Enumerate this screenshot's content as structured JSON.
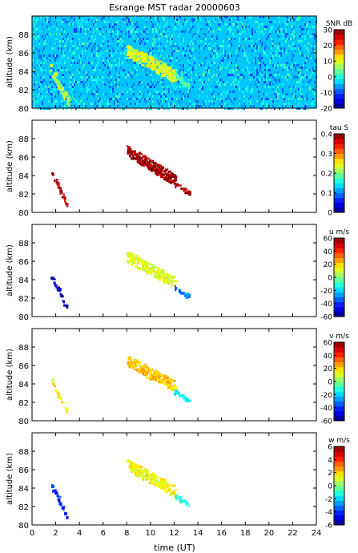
{
  "chart_data": {
    "title": "Esrange MST radar 20000603",
    "x_axis": {
      "label": "time (UT)",
      "range": [
        0,
        24
      ],
      "ticks": [
        0,
        2,
        4,
        6,
        8,
        10,
        12,
        14,
        16,
        18,
        20,
        22,
        24
      ],
      "tick_labels": [
        "0",
        "2",
        "4",
        "6",
        "8",
        "10",
        "12",
        "14",
        "16",
        "18",
        "20",
        "22",
        "24"
      ]
    },
    "panels": [
      {
        "type": "heatmap",
        "ylabel": "altitude (km)",
        "ylim": [
          80,
          90
        ],
        "yticks": [
          80,
          82,
          84,
          86,
          88
        ],
        "colorbar": {
          "label": "SNR dB",
          "range": [
            -20,
            30
          ],
          "ticks": [
            -20,
            -10,
            0,
            10,
            20,
            30
          ],
          "tick_labels": [
            "-20",
            "-10",
            "0",
            "10",
            "20",
            "30"
          ]
        },
        "background_value": -4,
        "echo_regions": [
          {
            "t_start": 1.5,
            "t_end": 3.0,
            "alt_start": 84.4,
            "alt_end": 80.8,
            "width_km": 1.0,
            "value": 8
          },
          {
            "t_start": 8.0,
            "t_end": 12.0,
            "alt_start": 86.4,
            "alt_end": 83.6,
            "width_km": 1.4,
            "value": 10
          },
          {
            "t_start": 12.0,
            "t_end": 13.2,
            "alt_start": 83.6,
            "alt_end": 82.5,
            "width_km": 0.6,
            "value": 4
          }
        ]
      },
      {
        "type": "heatmap",
        "ylabel": "altitude (km)",
        "ylim": [
          80,
          90
        ],
        "yticks": [
          80,
          82,
          84,
          86,
          88
        ],
        "colorbar": {
          "label": "tau S",
          "range": [
            0,
            0.4
          ],
          "ticks": [
            0,
            0.1,
            0.2,
            0.3,
            0.4
          ],
          "tick_labels": [
            "0",
            "0.1",
            "0.2",
            "0.3",
            "0.4"
          ]
        },
        "echo_regions": [
          {
            "t_start": 1.6,
            "t_end": 2.9,
            "alt_start": 84.4,
            "alt_end": 81.0,
            "width_km": 0.5,
            "value": 0.38
          },
          {
            "t_start": 8.0,
            "t_end": 12.0,
            "alt_start": 86.8,
            "alt_end": 83.6,
            "width_km": 1.2,
            "value": 0.39
          },
          {
            "t_start": 12.0,
            "t_end": 13.2,
            "alt_start": 83.2,
            "alt_end": 82.2,
            "width_km": 0.4,
            "value": 0.38
          }
        ]
      },
      {
        "type": "heatmap",
        "ylabel": "altitude (km)",
        "ylim": [
          80,
          90
        ],
        "yticks": [
          80,
          82,
          84,
          86,
          88
        ],
        "colorbar": {
          "label": "u m/s",
          "range": [
            -60,
            60
          ],
          "ticks": [
            -60,
            -40,
            -20,
            0,
            20,
            40,
            60
          ],
          "tick_labels": [
            "-60",
            "-40",
            "-20",
            "0",
            "20",
            "40",
            "60"
          ]
        },
        "echo_regions": [
          {
            "t_start": 1.6,
            "t_end": 2.9,
            "alt_start": 84.4,
            "alt_end": 81.0,
            "width_km": 0.5,
            "value": -55
          },
          {
            "t_start": 8.0,
            "t_end": 12.0,
            "alt_start": 86.6,
            "alt_end": 83.8,
            "width_km": 1.2,
            "value": 12
          },
          {
            "t_start": 12.0,
            "t_end": 13.2,
            "alt_start": 83.2,
            "alt_end": 82.3,
            "width_km": 0.4,
            "value": -30
          }
        ]
      },
      {
        "type": "heatmap",
        "ylabel": "altitude (km)",
        "ylim": [
          80,
          90
        ],
        "yticks": [
          80,
          82,
          84,
          86,
          88
        ],
        "colorbar": {
          "label": "v m/s",
          "range": [
            -60,
            60
          ],
          "ticks": [
            -60,
            -40,
            -20,
            0,
            20,
            40,
            60
          ],
          "tick_labels": [
            "-60",
            "-40",
            "-20",
            "0",
            "20",
            "40",
            "60"
          ]
        },
        "echo_regions": [
          {
            "t_start": 1.6,
            "t_end": 2.9,
            "alt_start": 84.4,
            "alt_end": 81.0,
            "width_km": 0.5,
            "value": 15
          },
          {
            "t_start": 8.0,
            "t_end": 12.0,
            "alt_start": 86.6,
            "alt_end": 83.8,
            "width_km": 1.2,
            "value": 22
          },
          {
            "t_start": 12.0,
            "t_end": 13.2,
            "alt_start": 83.2,
            "alt_end": 82.3,
            "width_km": 0.4,
            "value": -15
          }
        ]
      },
      {
        "type": "heatmap",
        "ylabel": "altitude (km)",
        "ylim": [
          80,
          90
        ],
        "yticks": [
          80,
          82,
          84,
          86,
          88
        ],
        "colorbar": {
          "label": "w m/s",
          "range": [
            -6,
            6
          ],
          "ticks": [
            -6,
            -4,
            -2,
            0,
            2,
            4,
            6
          ],
          "tick_labels": [
            "-6",
            "-4",
            "-2",
            "0",
            "2",
            "4",
            "6"
          ]
        },
        "echo_regions": [
          {
            "t_start": 1.6,
            "t_end": 2.9,
            "alt_start": 84.4,
            "alt_end": 81.0,
            "width_km": 0.5,
            "value": -4
          },
          {
            "t_start": 8.0,
            "t_end": 12.0,
            "alt_start": 86.6,
            "alt_end": 83.8,
            "width_km": 1.2,
            "value": 1.5
          },
          {
            "t_start": 12.0,
            "t_end": 13.2,
            "alt_start": 83.2,
            "alt_end": 82.3,
            "width_km": 0.4,
            "value": -1
          }
        ]
      }
    ]
  }
}
